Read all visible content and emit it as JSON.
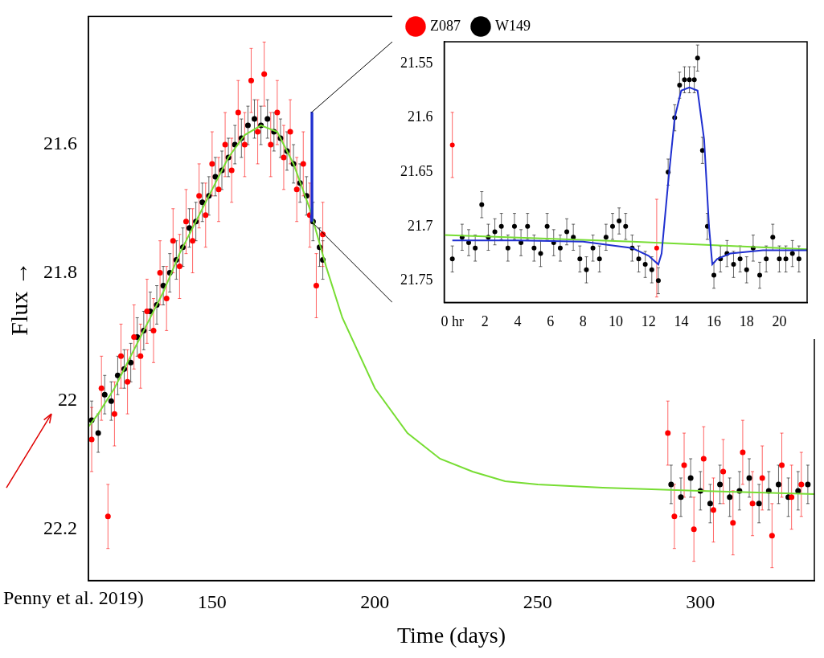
{
  "chart_data": [
    {
      "type": "scatter",
      "x_label": "Time (days)",
      "y_label": "Flux →",
      "annotations": [
        "Penny et al. 2019)"
      ],
      "xlim": [
        112,
        335
      ],
      "xticks": [
        150,
        200,
        250,
        300
      ],
      "ylim": [
        22.28,
        21.4
      ],
      "yticks": [
        21.6,
        21.8,
        22,
        22.2
      ],
      "grid": false,
      "series": [
        {
          "color": "#000000",
          "marker": "circle",
          "error": 0.03,
          "x": [
            113,
            115,
            117,
            119,
            121,
            123,
            125,
            127,
            129,
            131,
            133,
            135,
            137,
            139,
            141,
            143,
            145,
            147,
            149,
            151,
            153,
            155,
            157,
            159,
            161,
            163,
            165,
            167,
            169,
            171,
            173,
            175,
            177,
            179,
            181,
            183,
            184,
            291,
            294,
            297,
            300,
            303,
            306,
            309,
            312,
            315,
            318,
            321,
            324,
            327,
            330,
            333
          ],
          "values": [
            22.03,
            22.05,
            21.99,
            22,
            21.96,
            21.95,
            21.94,
            21.9,
            21.89,
            21.86,
            21.85,
            21.82,
            21.8,
            21.78,
            21.76,
            21.73,
            21.72,
            21.69,
            21.68,
            21.65,
            21.64,
            21.62,
            21.6,
            21.59,
            21.57,
            21.56,
            21.57,
            21.56,
            21.58,
            21.59,
            21.61,
            21.63,
            21.66,
            21.68,
            21.72,
            21.76,
            21.78,
            22.13,
            22.15,
            22.12,
            22.14,
            22.16,
            22.13,
            22.15,
            22.14,
            22.12,
            22.16,
            22.14,
            22.13,
            22.15,
            22.14,
            22.13
          ]
        },
        {
          "color": "#ff0000",
          "marker": "circle",
          "error": 0.05,
          "x": [
            113,
            116,
            118,
            120,
            122,
            124,
            126,
            128,
            130,
            132,
            134,
            136,
            138,
            140,
            142,
            144,
            146,
            148,
            150,
            152,
            154,
            156,
            158,
            160,
            162,
            164,
            166,
            168,
            170,
            172,
            174,
            176,
            178,
            180,
            182,
            184,
            290,
            292,
            295,
            298,
            301,
            304,
            307,
            310,
            313,
            316,
            319,
            322,
            325,
            328,
            331
          ],
          "values": [
            22.06,
            21.98,
            22.18,
            22.02,
            21.93,
            21.97,
            21.9,
            21.93,
            21.86,
            21.89,
            21.8,
            21.84,
            21.75,
            21.79,
            21.72,
            21.75,
            21.68,
            21.71,
            21.63,
            21.67,
            21.6,
            21.64,
            21.55,
            21.6,
            21.5,
            21.58,
            21.49,
            21.6,
            21.55,
            21.62,
            21.58,
            21.67,
            21.63,
            21.71,
            21.82,
            21.74,
            22.05,
            22.18,
            22.1,
            22.2,
            22.09,
            22.17,
            22.11,
            22.19,
            22.08,
            22.16,
            22.12,
            22.21,
            22.1,
            22.15,
            22.13
          ]
        },
        {
          "type": "line",
          "color": "#77dd33",
          "line_style": "solid",
          "x": [
            112,
            115,
            120,
            125,
            130,
            135,
            140,
            145,
            150,
            155,
            160,
            165,
            170,
            175,
            180,
            185,
            190,
            200,
            210,
            220,
            230,
            240,
            250,
            270,
            300,
            335
          ],
          "values": [
            22.04,
            22.02,
            21.98,
            21.93,
            21.88,
            21.83,
            21.77,
            21.72,
            21.67,
            21.62,
            21.585,
            21.57,
            21.58,
            21.63,
            21.7,
            21.79,
            21.87,
            21.98,
            22.05,
            22.09,
            22.11,
            22.125,
            22.13,
            22.135,
            22.14,
            22.145
          ]
        },
        {
          "type": "line",
          "color": "#1f2fd0",
          "line_style": "solid",
          "x": [
            180.3,
            180.45,
            180.5,
            180.7,
            180.75,
            180.9
          ],
          "values": [
            21.71,
            21.72,
            21.55,
            21.55,
            21.72,
            21.71
          ]
        }
      ]
    },
    {
      "type": "scatter",
      "legend": "top",
      "xlim": [
        -0.5,
        21.7
      ],
      "xticks": [
        {
          "value": 0,
          "label": "0 hr"
        },
        2,
        4,
        6,
        8,
        10,
        12,
        14,
        16,
        18,
        20
      ],
      "ylim": [
        21.77,
        21.53
      ],
      "yticks": [
        21.55,
        21.6,
        21.65,
        21.7,
        21.75
      ],
      "grid": false,
      "series": [
        {
          "name": "W149",
          "color": "#000000",
          "marker": "circle",
          "error": 0.012,
          "x": [
            0,
            0.6,
            1,
            1.4,
            1.8,
            2.2,
            2.6,
            3,
            3.4,
            3.8,
            4.2,
            4.6,
            5,
            5.4,
            5.8,
            6.2,
            6.6,
            7,
            7.4,
            7.8,
            8.2,
            8.6,
            9,
            9.4,
            9.8,
            10.2,
            10.6,
            11,
            11.4,
            11.8,
            12.2,
            12.6,
            13.2,
            13.6,
            13.9,
            14.2,
            14.5,
            14.8,
            15,
            15.3,
            15.6,
            16,
            16.4,
            16.8,
            17.2,
            17.6,
            18,
            18.4,
            18.8,
            19.2,
            19.6,
            20,
            20.4,
            20.8,
            21.2
          ],
          "values": [
            21.73,
            21.71,
            21.715,
            21.72,
            21.68,
            21.71,
            21.705,
            21.7,
            21.72,
            21.7,
            21.715,
            21.7,
            21.72,
            21.725,
            21.7,
            21.715,
            21.72,
            21.705,
            21.71,
            21.73,
            21.74,
            21.72,
            21.73,
            21.71,
            21.7,
            21.695,
            21.7,
            21.72,
            21.73,
            21.735,
            21.74,
            21.75,
            21.65,
            21.6,
            21.57,
            21.565,
            21.565,
            21.565,
            21.545,
            21.63,
            21.7,
            21.745,
            21.73,
            21.725,
            21.735,
            21.73,
            21.74,
            21.72,
            21.745,
            21.73,
            21.71,
            21.73,
            21.73,
            21.725,
            21.73
          ]
        },
        {
          "name": "Z087",
          "color": "#ff0000",
          "marker": "circle",
          "x": [
            0,
            12.5
          ],
          "values": [
            21.625,
            21.72
          ],
          "errors": [
            0.03,
            0.045
          ]
        },
        {
          "type": "line",
          "color": "#77dd33",
          "line_style": "solid",
          "x": [
            -0.5,
            11,
            21.7
          ],
          "values": [
            21.708,
            21.714,
            21.721
          ]
        },
        {
          "type": "line",
          "color": "#1f2fd0",
          "line_style": "solid",
          "x": [
            0,
            4,
            8,
            11,
            12,
            12.6,
            12.8,
            13.2,
            13.6,
            14,
            14.5,
            15,
            15.4,
            15.7,
            15.9,
            16.2,
            17,
            19,
            21.7
          ],
          "values": [
            21.713,
            21.713,
            21.714,
            21.72,
            21.727,
            21.735,
            21.725,
            21.66,
            21.6,
            21.575,
            21.572,
            21.575,
            21.62,
            21.7,
            21.735,
            21.73,
            21.725,
            21.722,
            21.722
          ]
        }
      ]
    }
  ]
}
